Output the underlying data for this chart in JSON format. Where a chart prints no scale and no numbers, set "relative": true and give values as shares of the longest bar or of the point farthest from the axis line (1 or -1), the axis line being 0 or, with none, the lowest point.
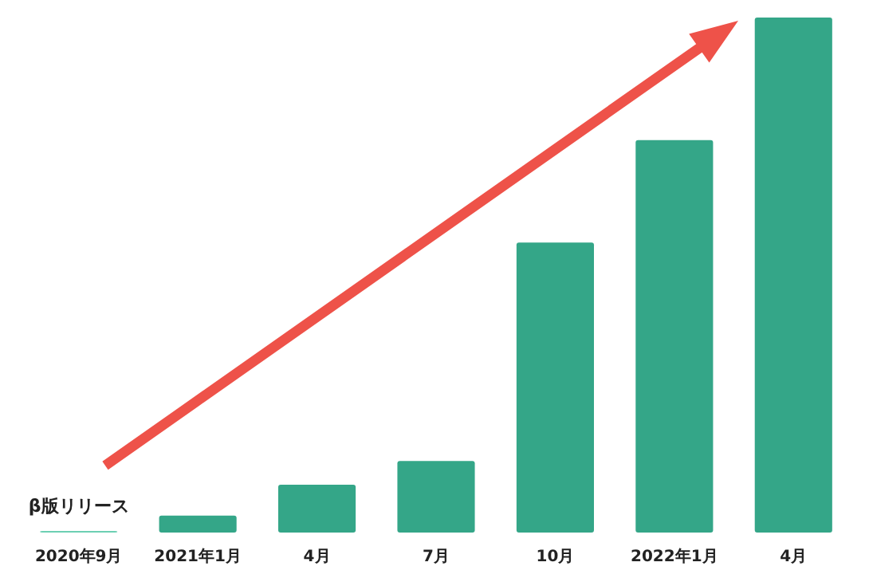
{
  "chart_data": {
    "type": "bar",
    "relative": true,
    "categories": [
      "2020年9月",
      "2021年1月",
      "4月",
      "7月",
      "10月",
      "2022年1月",
      "4月"
    ],
    "values": [
      0.003,
      0.033,
      0.093,
      0.139,
      0.563,
      0.762,
      1
    ],
    "colors": [
      "#6ccfb3",
      "#34a688",
      "#34a688",
      "#34a688",
      "#34a688",
      "#34a688",
      "#34a688"
    ],
    "annotations": [
      "β版リリース"
    ]
  }
}
